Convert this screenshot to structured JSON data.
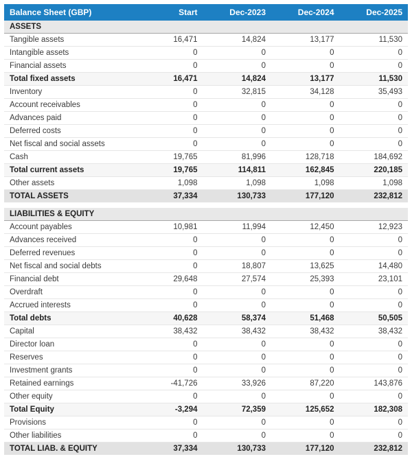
{
  "header": {
    "title": "Balance Sheet (GBP)",
    "columns": [
      "Start",
      "Dec-2023",
      "Dec-2024",
      "Dec-2025"
    ]
  },
  "colors": {
    "header_bg": "#1d80c3",
    "header_text": "#ffffff",
    "section_bg": "#e8e8e8",
    "subtotal_bg": "#f6f6f6",
    "grandtotal_bg": "#e2e2e2"
  },
  "sections": [
    {
      "name": "ASSETS",
      "rows": [
        {
          "label": "Tangible assets",
          "type": "data",
          "values": [
            "16,471",
            "14,824",
            "13,177",
            "11,530"
          ]
        },
        {
          "label": "Intangible assets",
          "type": "data",
          "values": [
            "0",
            "0",
            "0",
            "0"
          ]
        },
        {
          "label": "Financial assets",
          "type": "data",
          "values": [
            "0",
            "0",
            "0",
            "0"
          ]
        },
        {
          "label": "Total fixed assets",
          "type": "subtotal",
          "values": [
            "16,471",
            "14,824",
            "13,177",
            "11,530"
          ]
        },
        {
          "label": "Inventory",
          "type": "data",
          "values": [
            "0",
            "32,815",
            "34,128",
            "35,493"
          ]
        },
        {
          "label": "Account receivables",
          "type": "data",
          "values": [
            "0",
            "0",
            "0",
            "0"
          ]
        },
        {
          "label": "Advances paid",
          "type": "data",
          "values": [
            "0",
            "0",
            "0",
            "0"
          ]
        },
        {
          "label": "Deferred costs",
          "type": "data",
          "values": [
            "0",
            "0",
            "0",
            "0"
          ]
        },
        {
          "label": "Net fiscal and social assets",
          "type": "data",
          "values": [
            "0",
            "0",
            "0",
            "0"
          ]
        },
        {
          "label": "Cash",
          "type": "data",
          "values": [
            "19,765",
            "81,996",
            "128,718",
            "184,692"
          ]
        },
        {
          "label": "Total current assets",
          "type": "subtotal",
          "values": [
            "19,765",
            "114,811",
            "162,845",
            "220,185"
          ]
        },
        {
          "label": "Other assets",
          "type": "data",
          "values": [
            "1,098",
            "1,098",
            "1,098",
            "1,098"
          ]
        },
        {
          "label": "TOTAL ASSETS",
          "type": "grandtotal",
          "values": [
            "37,334",
            "130,733",
            "177,120",
            "232,812"
          ]
        }
      ]
    },
    {
      "name": "LIABILITIES & EQUITY",
      "rows": [
        {
          "label": "Account payables",
          "type": "data",
          "values": [
            "10,981",
            "11,994",
            "12,450",
            "12,923"
          ]
        },
        {
          "label": "Advances received",
          "type": "data",
          "values": [
            "0",
            "0",
            "0",
            "0"
          ]
        },
        {
          "label": "Deferred revenues",
          "type": "data",
          "values": [
            "0",
            "0",
            "0",
            "0"
          ]
        },
        {
          "label": "Net fiscal and social debts",
          "type": "data",
          "values": [
            "0",
            "18,807",
            "13,625",
            "14,480"
          ]
        },
        {
          "label": "Financial debt",
          "type": "data",
          "values": [
            "29,648",
            "27,574",
            "25,393",
            "23,101"
          ]
        },
        {
          "label": "Overdraft",
          "type": "data",
          "values": [
            "0",
            "0",
            "0",
            "0"
          ]
        },
        {
          "label": "Accrued interests",
          "type": "data",
          "values": [
            "0",
            "0",
            "0",
            "0"
          ]
        },
        {
          "label": "Total debts",
          "type": "subtotal",
          "values": [
            "40,628",
            "58,374",
            "51,468",
            "50,505"
          ]
        },
        {
          "label": "Capital",
          "type": "data",
          "values": [
            "38,432",
            "38,432",
            "38,432",
            "38,432"
          ]
        },
        {
          "label": "Director loan",
          "type": "data",
          "values": [
            "0",
            "0",
            "0",
            "0"
          ]
        },
        {
          "label": "Reserves",
          "type": "data",
          "values": [
            "0",
            "0",
            "0",
            "0"
          ]
        },
        {
          "label": "Investment grants",
          "type": "data",
          "values": [
            "0",
            "0",
            "0",
            "0"
          ]
        },
        {
          "label": "Retained earnings",
          "type": "data",
          "values": [
            "-41,726",
            "33,926",
            "87,220",
            "143,876"
          ]
        },
        {
          "label": "Other equity",
          "type": "data",
          "values": [
            "0",
            "0",
            "0",
            "0"
          ]
        },
        {
          "label": "Total Equity",
          "type": "subtotal",
          "values": [
            "-3,294",
            "72,359",
            "125,652",
            "182,308"
          ]
        },
        {
          "label": "Provisions",
          "type": "data",
          "values": [
            "0",
            "0",
            "0",
            "0"
          ]
        },
        {
          "label": "Other liabilities",
          "type": "data",
          "values": [
            "0",
            "0",
            "0",
            "0"
          ]
        },
        {
          "label": "TOTAL LIAB. & EQUITY",
          "type": "grandtotal",
          "values": [
            "37,334",
            "130,733",
            "177,120",
            "232,812"
          ]
        }
      ]
    }
  ]
}
